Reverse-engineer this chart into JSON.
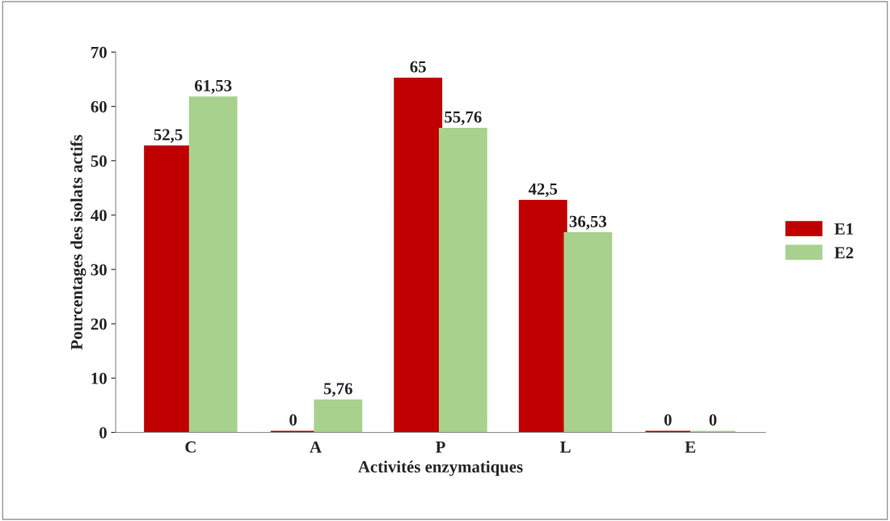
{
  "chart_data": {
    "type": "bar",
    "xlabel": "Activités enzymatiques",
    "ylabel": "Pourcentages des isolats actifs",
    "categories": [
      "C",
      "A",
      "P",
      "L",
      "E"
    ],
    "series": [
      {
        "name": "E1",
        "color": "#c00000",
        "values": [
          52.5,
          0,
          65,
          42.5,
          0
        ],
        "value_labels": [
          "52,5",
          "0",
          "65",
          "42,5",
          "0"
        ]
      },
      {
        "name": "E2",
        "color": "#a9d18e",
        "values": [
          61.53,
          5.76,
          55.76,
          36.53,
          0
        ],
        "value_labels": [
          "61,53",
          "5,76",
          "55,76",
          "36,53",
          "0"
        ]
      }
    ],
    "ylim": [
      0,
      70
    ],
    "yticks": [
      0,
      10,
      20,
      30,
      40,
      50,
      60,
      70
    ],
    "grid": false,
    "legend": "right"
  }
}
